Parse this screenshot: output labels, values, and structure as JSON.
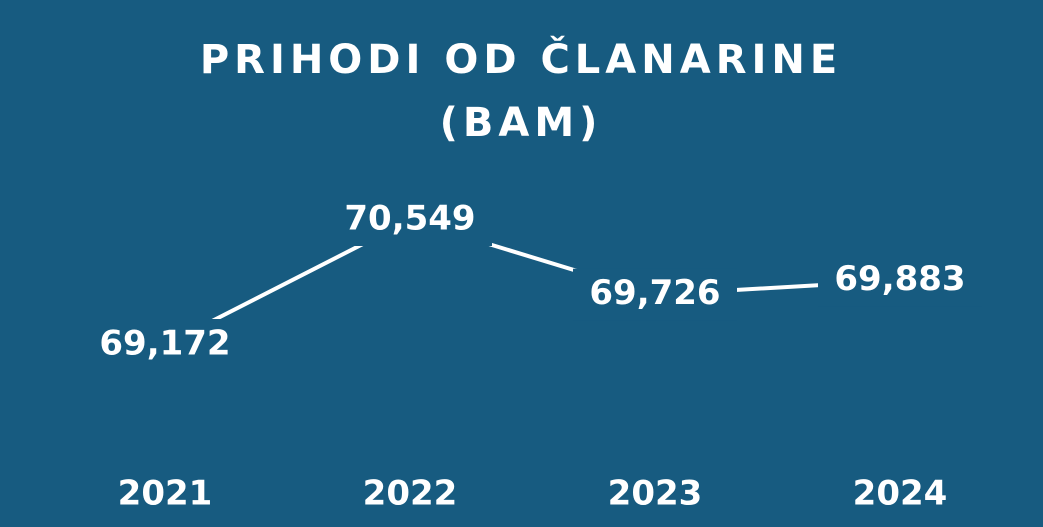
{
  "chart_data": {
    "type": "line",
    "title": "PRIHODI OD ČLANARINE",
    "subtitle": "(BAM)",
    "categories": [
      "2021",
      "2022",
      "2023",
      "2024"
    ],
    "values": [
      69172,
      70549,
      69726,
      69883
    ],
    "value_labels": [
      "69,172",
      "70,549",
      "69,726",
      "69,883"
    ],
    "color": "#ffffff",
    "background": "#175b80"
  }
}
